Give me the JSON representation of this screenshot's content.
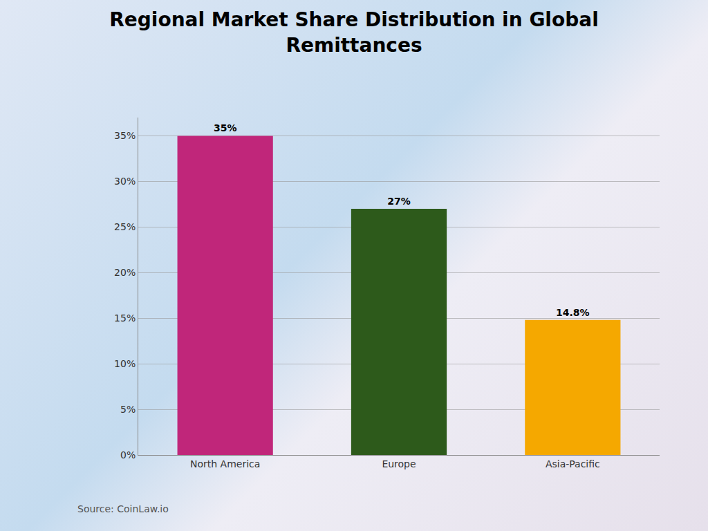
{
  "chart_data": {
    "type": "bar",
    "title": "Regional Market Share Distribution in Global\nRemittances",
    "categories": [
      "North America",
      "Europe",
      "Asia-Pacific"
    ],
    "values": [
      35,
      27,
      14.8
    ],
    "value_labels": [
      "35%",
      "27%",
      "14.8%"
    ],
    "data_labels": true,
    "colors": [
      "#C0267A",
      "#2D5A1B",
      "#F5A800"
    ],
    "ylim": [
      0,
      37
    ],
    "yticks": [
      {
        "value": 0,
        "label": "0%"
      },
      {
        "value": 5,
        "label": "5%"
      },
      {
        "value": 10,
        "label": "10%"
      },
      {
        "value": 15,
        "label": "15%"
      },
      {
        "value": 20,
        "label": "20%"
      },
      {
        "value": 25,
        "label": "25%"
      },
      {
        "value": 30,
        "label": "30%"
      },
      {
        "value": 35,
        "label": "35%"
      }
    ],
    "grid": true,
    "annotations": [
      "Source: CoinLaw.io"
    ]
  }
}
